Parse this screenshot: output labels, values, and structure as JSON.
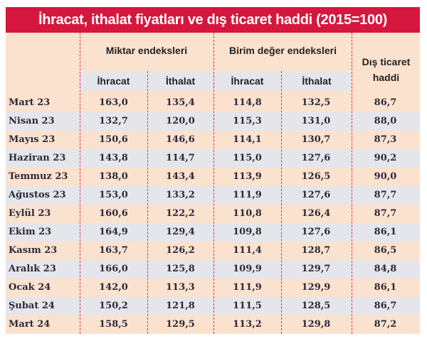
{
  "title": "İhracat, ithalat fiyatları ve dış ticaret haddi (2015=100)",
  "headers": {
    "miktar": "Miktar endeksleri",
    "birim": "Birim değer endeksleri",
    "dis_line1": "Dış ticaret",
    "dis_line2": "haddi",
    "ihracat": "İhracat",
    "ithalat": "İthalat"
  },
  "colors": {
    "title_bg": "#d5173e",
    "row_odd": "#fbe2cf",
    "row_even": "#e5e6eb"
  },
  "rows": [
    [
      "Mart 23",
      "163,0",
      "135,4",
      "114,8",
      "132,5",
      "86,7"
    ],
    [
      "Nisan 23",
      "132,7",
      "120,0",
      "115,3",
      "131,0",
      "88,0"
    ],
    [
      "Mayıs 23",
      "150,6",
      "146,6",
      "114,1",
      "130,7",
      "87,3"
    ],
    [
      "Haziran 23",
      "143,8",
      "114,7",
      "115,0",
      "127,6",
      "90,2"
    ],
    [
      "Temmuz 23",
      "138,0",
      "143,4",
      "113,9",
      "126,5",
      "90,0"
    ],
    [
      "Ağustos 23",
      "153,0",
      "133,2",
      "111,9",
      "127,6",
      "87,7"
    ],
    [
      "Eylül 23",
      "160,6",
      "122,2",
      "110,8",
      "126,4",
      "87,7"
    ],
    [
      "Ekim 23",
      "164,9",
      "129,4",
      "109,8",
      "127,6",
      "86,1"
    ],
    [
      "Kasım 23",
      "163,7",
      "126,2",
      "111,4",
      "128,7",
      "86,5"
    ],
    [
      "Aralık 23",
      "166,0",
      "125,8",
      "109,9",
      "129,7",
      "84,8"
    ],
    [
      "Ocak 24",
      "142,0",
      "113,3",
      "111,9",
      "129,9",
      "86,1"
    ],
    [
      "Şubat 24",
      "150,2",
      "121,8",
      "111,5",
      "128,5",
      "86,7"
    ],
    [
      "Mart 24",
      "158,5",
      "129,5",
      "113,2",
      "129,8",
      "87,2"
    ]
  ]
}
